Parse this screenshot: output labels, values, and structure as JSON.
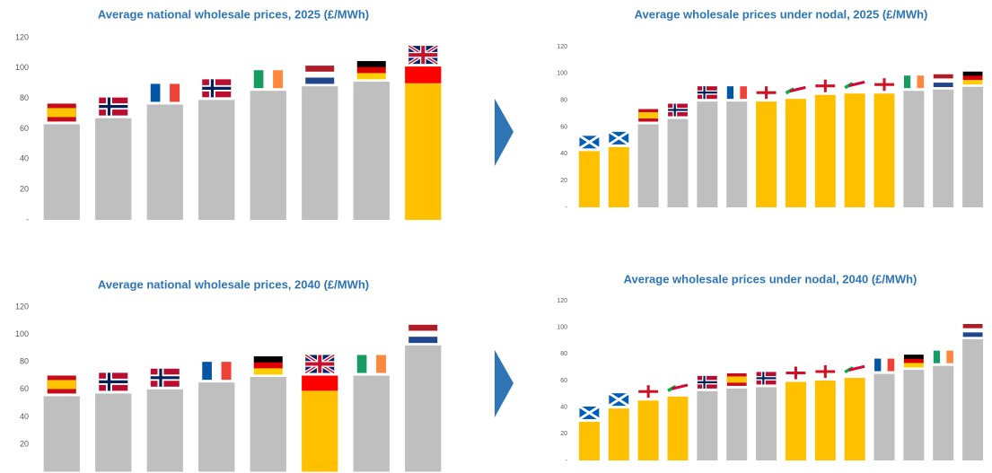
{
  "chart_data": [
    {
      "type": "bar",
      "title": "Average national wholesale prices, 2025 (£/MWh)",
      "categories": [
        null,
        null,
        null,
        null,
        null,
        null,
        null,
        null
      ],
      "series": [
        {
          "values": [
            63,
            67,
            76,
            79,
            85,
            88,
            91,
            90
          ],
          "colors": [
            "#bfbfbf",
            "#bfbfbf",
            "#bfbfbf",
            "#bfbfbf",
            "#bfbfbf",
            "#bfbfbf",
            "#bfbfbf",
            "#ffc000"
          ]
        },
        {
          "values": [
            null,
            null,
            null,
            null,
            null,
            null,
            null,
            11
          ],
          "color": "#ff0000"
        }
      ],
      "ylim": [
        0,
        120
      ],
      "yticks": [
        {
          "value": 0,
          "label": "-"
        },
        20,
        40,
        60,
        80,
        100,
        120
      ],
      "grid": false
    },
    {
      "type": "bar",
      "title": "Average wholesale prices under nodal, 2025 (£/MWh)",
      "categories": [
        null,
        null,
        null,
        null,
        null,
        null,
        null,
        null,
        null,
        null,
        null,
        null,
        null,
        null
      ],
      "series": [
        {
          "values": [
            42,
            45,
            62,
            66,
            79,
            79,
            79,
            81,
            84,
            85,
            85,
            87,
            88,
            90
          ],
          "colors": [
            "#ffc000",
            "#ffc000",
            "#bfbfbf",
            "#bfbfbf",
            "#bfbfbf",
            "#bfbfbf",
            "#ffc000",
            "#ffc000",
            "#ffc000",
            "#ffc000",
            "#ffc000",
            "#bfbfbf",
            "#bfbfbf",
            "#bfbfbf"
          ]
        }
      ],
      "ylim": [
        0,
        120
      ],
      "yticks": [
        {
          "value": 0,
          "label": "-"
        },
        20,
        40,
        60,
        80,
        100,
        120
      ],
      "grid": false
    },
    {
      "type": "bar",
      "title": "Average national wholesale prices, 2040 (£/MWh)",
      "categories": [
        null,
        null,
        null,
        null,
        null,
        null,
        null,
        null
      ],
      "series": [
        {
          "values": [
            55,
            57,
            60,
            65,
            69,
            59,
            70,
            92
          ],
          "colors": [
            "#bfbfbf",
            "#bfbfbf",
            "#bfbfbf",
            "#bfbfbf",
            "#bfbfbf",
            "#ffc000",
            "#bfbfbf",
            "#bfbfbf"
          ]
        },
        {
          "values": [
            null,
            null,
            null,
            null,
            null,
            11,
            null,
            null
          ],
          "color": "#ff0000"
        }
      ],
      "ylim": [
        0,
        120
      ],
      "yticks": [
        20,
        40,
        60,
        80,
        100,
        120
      ],
      "grid": false
    },
    {
      "type": "bar",
      "title": "Average wholesale prices under nodal, 2040 (£/MWh)",
      "categories": [
        null,
        null,
        null,
        null,
        null,
        null,
        null,
        null,
        null,
        null,
        null,
        null,
        null,
        null
      ],
      "series": [
        {
          "values": [
            29,
            39,
            45,
            48,
            52,
            54,
            55,
            59,
            60,
            62,
            65,
            68,
            71,
            91
          ],
          "colors": [
            "#ffc000",
            "#ffc000",
            "#ffc000",
            "#ffc000",
            "#bfbfbf",
            "#bfbfbf",
            "#bfbfbf",
            "#ffc000",
            "#ffc000",
            "#ffc000",
            "#bfbfbf",
            "#bfbfbf",
            "#bfbfbf",
            "#bfbfbf"
          ]
        }
      ],
      "ylim": [
        0,
        120
      ],
      "yticks": [
        {
          "value": 0,
          "label": "-"
        },
        20,
        40,
        60,
        80,
        100,
        120
      ],
      "grid": false
    }
  ]
}
